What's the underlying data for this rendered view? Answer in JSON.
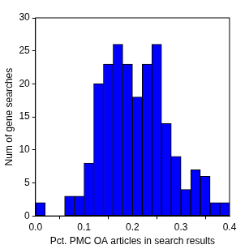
{
  "chart_data": {
    "type": "histogram",
    "x_label": "Pct. PMC OA articles in search results",
    "y_label": "Num of gene searches",
    "bins": [
      0.0,
      0.02,
      0.04,
      0.06,
      0.08,
      0.1,
      0.12,
      0.14,
      0.16,
      0.18,
      0.2,
      0.22,
      0.24,
      0.26,
      0.28,
      0.3,
      0.32,
      0.34,
      0.36,
      0.38,
      0.4
    ],
    "values": [
      2,
      0,
      0,
      3,
      3,
      8,
      20,
      23,
      26,
      23,
      18,
      23,
      26,
      14,
      9,
      4,
      7,
      6,
      2,
      2
    ],
    "color": "#0000ff",
    "xlim": [
      0,
      0.4
    ],
    "xticks": [
      {
        "value": 0,
        "label": "0.0"
      },
      {
        "value": 0.1,
        "label": "0.1"
      },
      {
        "value": 0.2,
        "label": "0.2"
      },
      {
        "value": 0.3,
        "label": "0.3"
      },
      {
        "value": 0.4,
        "label": "0.4"
      }
    ],
    "ylim": [
      0,
      30
    ],
    "yticks": [
      0,
      5,
      10,
      15,
      20,
      25,
      30
    ],
    "grid": false
  }
}
